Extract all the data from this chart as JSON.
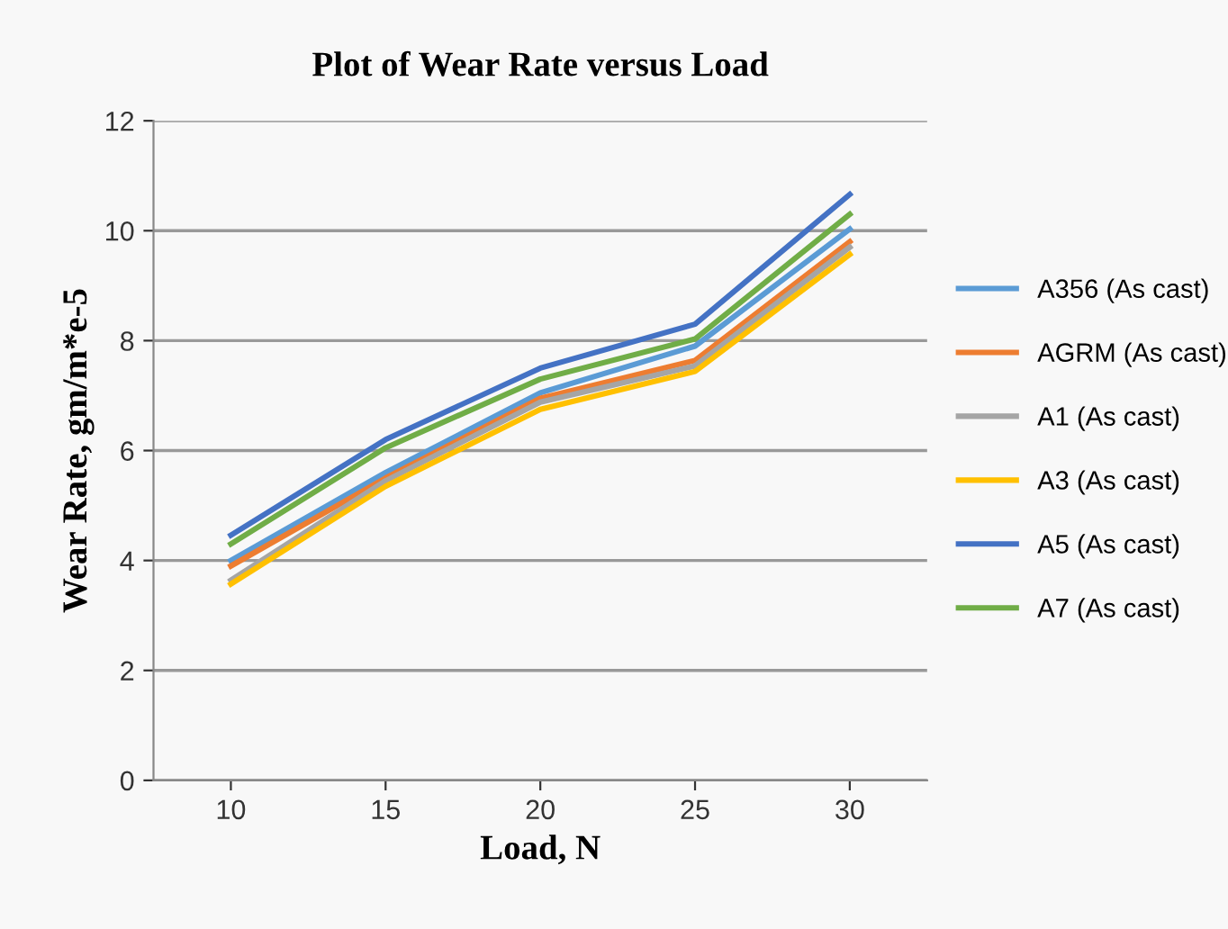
{
  "chart_data": {
    "type": "line",
    "title": "Plot of Wear Rate versus Load",
    "xlabel": "Load, N",
    "ylabel": "Wear Rate, gm/m*e-5",
    "categories": [
      "10",
      "15",
      "20",
      "25",
      "30"
    ],
    "ylim": [
      0,
      12
    ],
    "yticks": [
      0,
      2,
      4,
      6,
      8,
      10,
      12
    ],
    "grid": "y",
    "legend": "right",
    "marker": "none",
    "line_style": "solid",
    "series": [
      {
        "name": "A356 (As cast)",
        "color": "#5b9bd5",
        "values": [
          4.0,
          5.6,
          7.05,
          7.9,
          10.03
        ]
      },
      {
        "name": "AGRM (As cast)",
        "color": "#ed7d31",
        "values": [
          3.9,
          5.5,
          6.95,
          7.64,
          9.8
        ]
      },
      {
        "name": "A1 (As cast)",
        "color": "#a5a5a5",
        "values": [
          3.64,
          5.45,
          6.88,
          7.54,
          9.7
        ]
      },
      {
        "name": "A3 (As cast)",
        "color": "#ffc000",
        "values": [
          3.57,
          5.35,
          6.75,
          7.44,
          9.57
        ]
      },
      {
        "name": "A5 (As cast)",
        "color": "#4472c4",
        "values": [
          4.46,
          6.2,
          7.5,
          8.3,
          10.66
        ]
      },
      {
        "name": "A7 (As cast)",
        "color": "#70ad47",
        "values": [
          4.3,
          6.05,
          7.3,
          8.03,
          10.3
        ]
      }
    ]
  }
}
